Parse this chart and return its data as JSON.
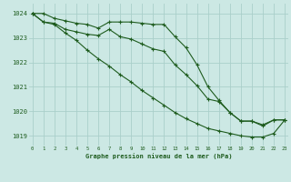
{
  "title": "Graphe pression niveau de la mer (hPa)",
  "background_color": "#cce8e4",
  "grid_color": "#aacfca",
  "line_color": "#1e5c1e",
  "x_ticks": [
    0,
    1,
    2,
    3,
    4,
    5,
    6,
    7,
    8,
    9,
    10,
    11,
    12,
    13,
    14,
    15,
    16,
    17,
    18,
    19,
    20,
    21,
    22,
    23
  ],
  "y_ticks": [
    1019,
    1020,
    1021,
    1022,
    1023,
    1024
  ],
  "ylim": [
    1018.6,
    1024.4
  ],
  "xlim": [
    -0.3,
    23.3
  ],
  "line1_x": [
    0,
    1,
    2,
    3,
    4,
    5,
    6,
    7,
    8,
    9,
    10,
    11,
    12,
    13,
    14,
    15,
    16,
    17,
    18,
    19,
    20,
    21,
    22,
    23
  ],
  "line1_y": [
    1024.0,
    1024.0,
    1023.8,
    1023.7,
    1023.6,
    1023.55,
    1023.4,
    1023.65,
    1023.65,
    1023.65,
    1023.6,
    1023.55,
    1023.55,
    1023.05,
    1022.6,
    1021.9,
    1021.0,
    1020.45,
    1019.95,
    1019.6,
    1019.6,
    1019.45,
    1019.65,
    1019.65
  ],
  "line2_x": [
    0,
    1,
    2,
    3,
    4,
    5,
    6,
    7,
    8,
    9,
    10,
    11,
    12,
    13,
    14,
    15,
    16,
    17,
    18,
    19,
    20,
    21,
    22,
    23
  ],
  "line2_y": [
    1024.0,
    1023.65,
    1023.6,
    1023.35,
    1023.25,
    1023.15,
    1023.1,
    1023.35,
    1023.05,
    1022.95,
    1022.75,
    1022.55,
    1022.45,
    1021.9,
    1021.5,
    1021.05,
    1020.5,
    1020.4,
    1019.95,
    1019.6,
    1019.6,
    1019.4,
    1019.65,
    1019.65
  ],
  "line3_x": [
    0,
    1,
    2,
    3,
    4,
    5,
    6,
    7,
    8,
    9,
    10,
    11,
    12,
    13,
    14,
    15,
    16,
    17,
    18,
    19,
    20,
    21,
    22,
    23
  ],
  "line3_y": [
    1024.0,
    1023.65,
    1023.55,
    1023.2,
    1022.9,
    1022.5,
    1022.15,
    1021.85,
    1021.5,
    1021.2,
    1020.85,
    1020.55,
    1020.25,
    1019.95,
    1019.7,
    1019.5,
    1019.3,
    1019.2,
    1019.1,
    1019.0,
    1018.95,
    1018.95,
    1019.1,
    1019.65
  ]
}
